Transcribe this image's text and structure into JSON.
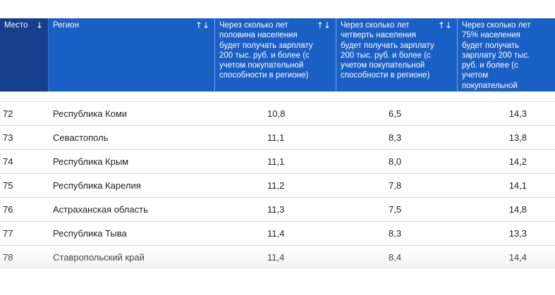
{
  "header": {
    "place": "Место",
    "region": "Регион",
    "col1": "Через сколько лет половина населения будет получать зарплату 200 тыс. руб. и более (с учетом покупательной способности в регионе)",
    "col2": "Через сколько лет четверть населения будет получать зарплату 200 тыс. руб. и более (с учетом покупательной способности в регионе)",
    "col3": "Через сколько лет 75% населения будет получать зарплату 200 тыс. руб. и более (с учетом покупательной способности в регионе)",
    "sort_desc_icon": "↓",
    "sort_both_icon": "↑↓"
  },
  "rows": [
    {
      "place": "72",
      "region": "Республика Коми",
      "half": "10,8",
      "quarter": "6,5",
      "three_quarters": "14,3"
    },
    {
      "place": "73",
      "region": "Севастополь",
      "half": "11,1",
      "quarter": "8,3",
      "three_quarters": "13,8"
    },
    {
      "place": "74",
      "region": "Республика Крым",
      "half": "11,1",
      "quarter": "8,0",
      "three_quarters": "14,2"
    },
    {
      "place": "75",
      "region": "Республика Карелия",
      "half": "11,2",
      "quarter": "7,8",
      "three_quarters": "14,1"
    },
    {
      "place": "76",
      "region": "Астраханская область",
      "half": "11,3",
      "quarter": "7,5",
      "three_quarters": "14,8"
    },
    {
      "place": "77",
      "region": "Республика Тыва",
      "half": "11,4",
      "quarter": "8,3",
      "three_quarters": "13,3"
    },
    {
      "place": "78",
      "region": "Ставропольский край",
      "half": "11,4",
      "quarter": "8,4",
      "three_quarters": "14,4"
    }
  ],
  "colors": {
    "header_bg": "#1a5fc4",
    "place_header_bg": "#153e8c",
    "text": "#1f1f1f"
  }
}
